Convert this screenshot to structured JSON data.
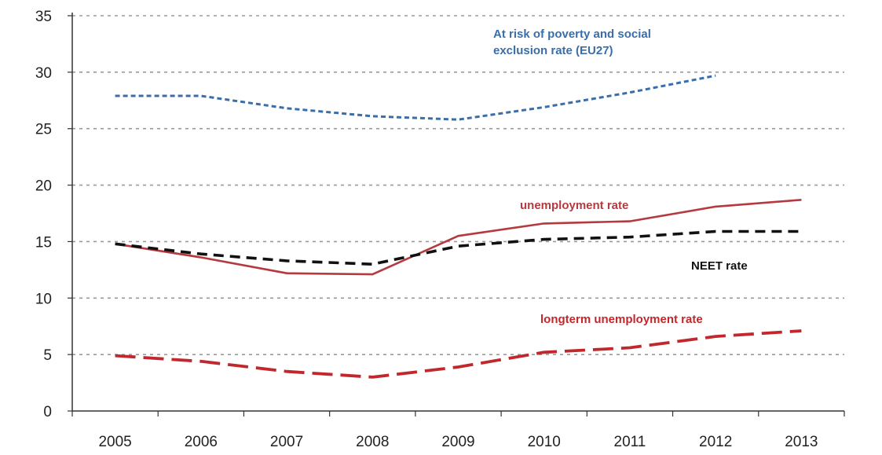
{
  "chart_data": {
    "type": "line",
    "title": "",
    "xlabel": "",
    "ylabel": "",
    "categories": [
      "2005",
      "2006",
      "2007",
      "2008",
      "2009",
      "2010",
      "2011",
      "2012",
      "2013"
    ],
    "ylim": [
      0,
      35
    ],
    "yticks": [
      0,
      5,
      10,
      15,
      20,
      25,
      30,
      35
    ],
    "grid": "horizontal dotted",
    "legend": "none (inline annotations)",
    "series": [
      {
        "name": "At risk of poverty and social exclusion rate (EU27)",
        "color": "#3B6EA8",
        "style": "short-dash",
        "values": [
          27.9,
          27.9,
          26.8,
          26.1,
          25.8,
          26.9,
          28.2,
          29.7,
          null
        ]
      },
      {
        "name": "unemployment rate",
        "color": "#B5393E",
        "style": "solid",
        "values": [
          14.8,
          13.6,
          12.2,
          12.1,
          15.5,
          16.6,
          16.8,
          18.1,
          18.7
        ]
      },
      {
        "name": "NEET rate",
        "color": "#111111",
        "style": "dash",
        "values": [
          14.8,
          13.9,
          13.3,
          13.0,
          14.6,
          15.2,
          15.4,
          15.9,
          15.9
        ]
      },
      {
        "name": "longterm unemployment rate",
        "color": "#C0282D",
        "style": "long-dash",
        "values": [
          4.9,
          4.4,
          3.5,
          3.0,
          3.9,
          5.2,
          5.6,
          6.6,
          7.1
        ]
      }
    ],
    "annotations": [
      {
        "lines": [
          "At risk of poverty and social",
          "exclusion rate (EU27)"
        ],
        "color": "#3B6EA8",
        "series": 0
      },
      {
        "lines": [
          "unemployment rate"
        ],
        "color": "#B5393E",
        "series": 1
      },
      {
        "lines": [
          "NEET rate"
        ],
        "color": "#111111",
        "series": 2
      },
      {
        "lines": [
          "longterm unemployment rate"
        ],
        "color": "#C0282D",
        "series": 3
      }
    ]
  }
}
